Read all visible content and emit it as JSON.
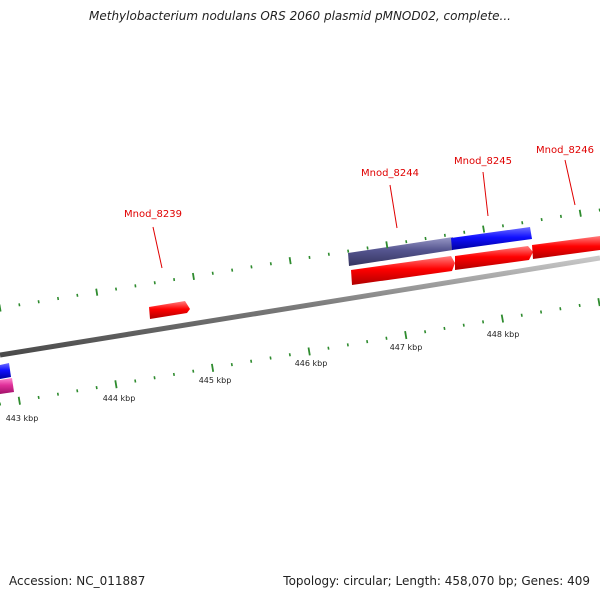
{
  "title": "Methylobacterium nodulans ORS 2060 plasmid pMNOD02, complete...",
  "footer": {
    "accession": "Accession: NC_011887",
    "summary": "Topology: circular; Length: 458,070 bp; Genes: 409"
  },
  "scale_labels": [
    "443 kbp",
    "444 kbp",
    "445 kbp",
    "446 kbp",
    "447 kbp",
    "448 kbp"
  ],
  "gene_labels": [
    "Mnod_8239",
    "Mnod_8244",
    "Mnod_8245",
    "Mnod_8246"
  ],
  "colors": {
    "backbone": "#808080",
    "tick": "#2e8b2e",
    "gene_forward": "#ff0000",
    "gene_blue": "#1a1aff",
    "gene_slate": "#55558f",
    "gene_magenta": "#e0309a",
    "gene_label": "#e00000",
    "scale_label": "#222222"
  }
}
